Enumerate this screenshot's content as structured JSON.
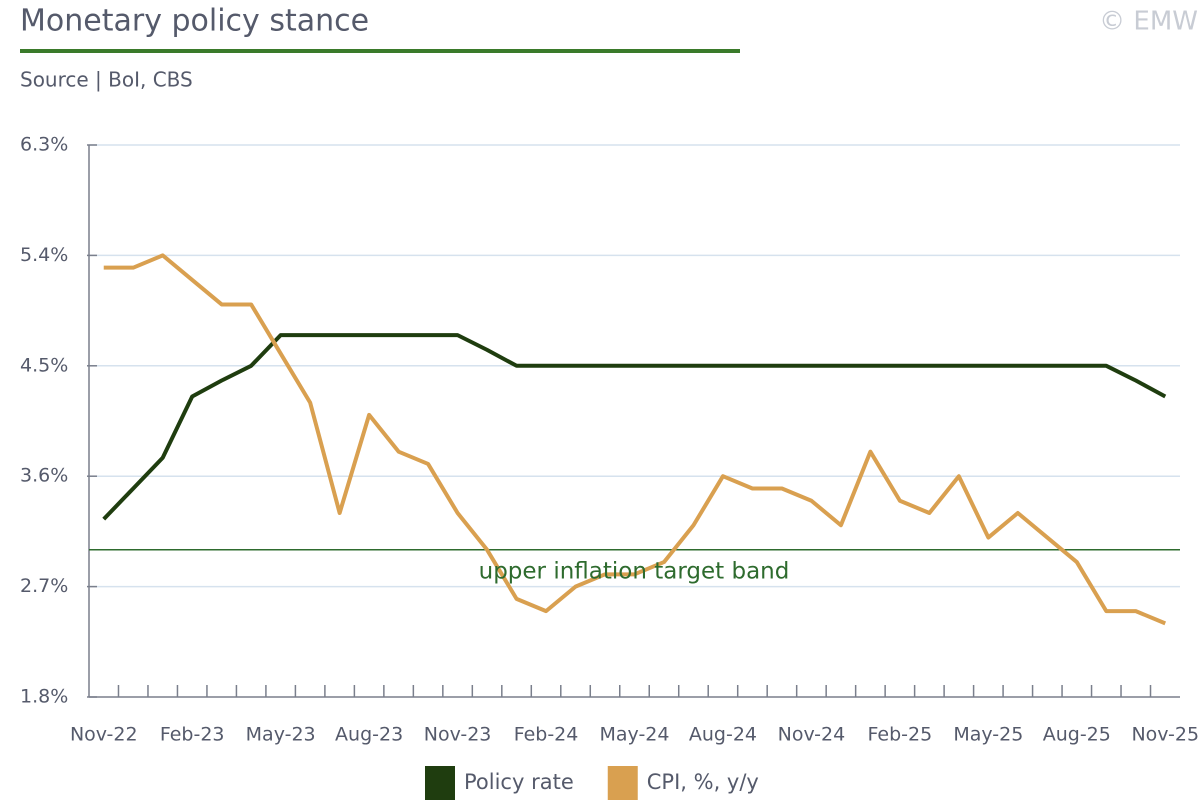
{
  "chart_data": {
    "type": "line",
    "title": "Monetary policy stance",
    "subtitle": "Source | BoI, CBS",
    "watermark": "© EMW",
    "categories": [
      "Nov-22",
      null,
      null,
      "Feb-23",
      null,
      null,
      "May-23",
      null,
      null,
      "Aug-23",
      null,
      null,
      "Nov-23",
      null,
      null,
      "Feb-24",
      null,
      null,
      "May-24",
      null,
      null,
      "Aug-24",
      null,
      null,
      "Nov-24",
      null,
      null,
      "Feb-25",
      null,
      null,
      "May-25",
      null,
      null,
      "Aug-25",
      null,
      null,
      "Nov-25"
    ],
    "series": [
      {
        "name": "Policy rate",
        "color": "#1f3d0f",
        "values": [
          3.25,
          3.5,
          3.75,
          4.25,
          4.38,
          4.5,
          4.75,
          4.75,
          4.75,
          4.75,
          4.75,
          4.75,
          4.75,
          4.63,
          4.5,
          4.5,
          4.5,
          4.5,
          4.5,
          4.5,
          4.5,
          4.5,
          4.5,
          4.5,
          4.5,
          4.5,
          4.5,
          4.5,
          4.5,
          4.5,
          4.5,
          4.5,
          4.5,
          4.5,
          4.5,
          4.38,
          4.25
        ]
      },
      {
        "name": "CPI, %, y/y",
        "color": "#d9a050",
        "values": [
          5.3,
          5.3,
          5.4,
          5.2,
          5.0,
          5.0,
          4.6,
          4.2,
          3.3,
          4.1,
          3.8,
          3.7,
          3.3,
          3.0,
          2.6,
          2.5,
          2.7,
          2.8,
          2.8,
          2.9,
          3.2,
          3.6,
          3.5,
          3.5,
          3.4,
          3.2,
          3.8,
          3.4,
          3.3,
          3.6,
          3.1,
          3.3,
          3.1,
          2.9,
          2.5,
          2.5,
          2.4
        ]
      }
    ],
    "reference_line": {
      "value": 3.0,
      "label": "upper inflation target band",
      "color": "#2e6b2e"
    },
    "ylim": [
      1.8,
      6.3
    ],
    "yticks": [
      {
        "value": 1.8,
        "label": "1.8%"
      },
      {
        "value": 2.7,
        "label": "2.7%"
      },
      {
        "value": 3.6,
        "label": "3.6%"
      },
      {
        "value": 4.5,
        "label": "4.5%"
      },
      {
        "value": 5.4,
        "label": "5.4%"
      },
      {
        "value": 6.3,
        "label": "6.3%"
      }
    ],
    "grid": true,
    "legend": "bottom"
  }
}
